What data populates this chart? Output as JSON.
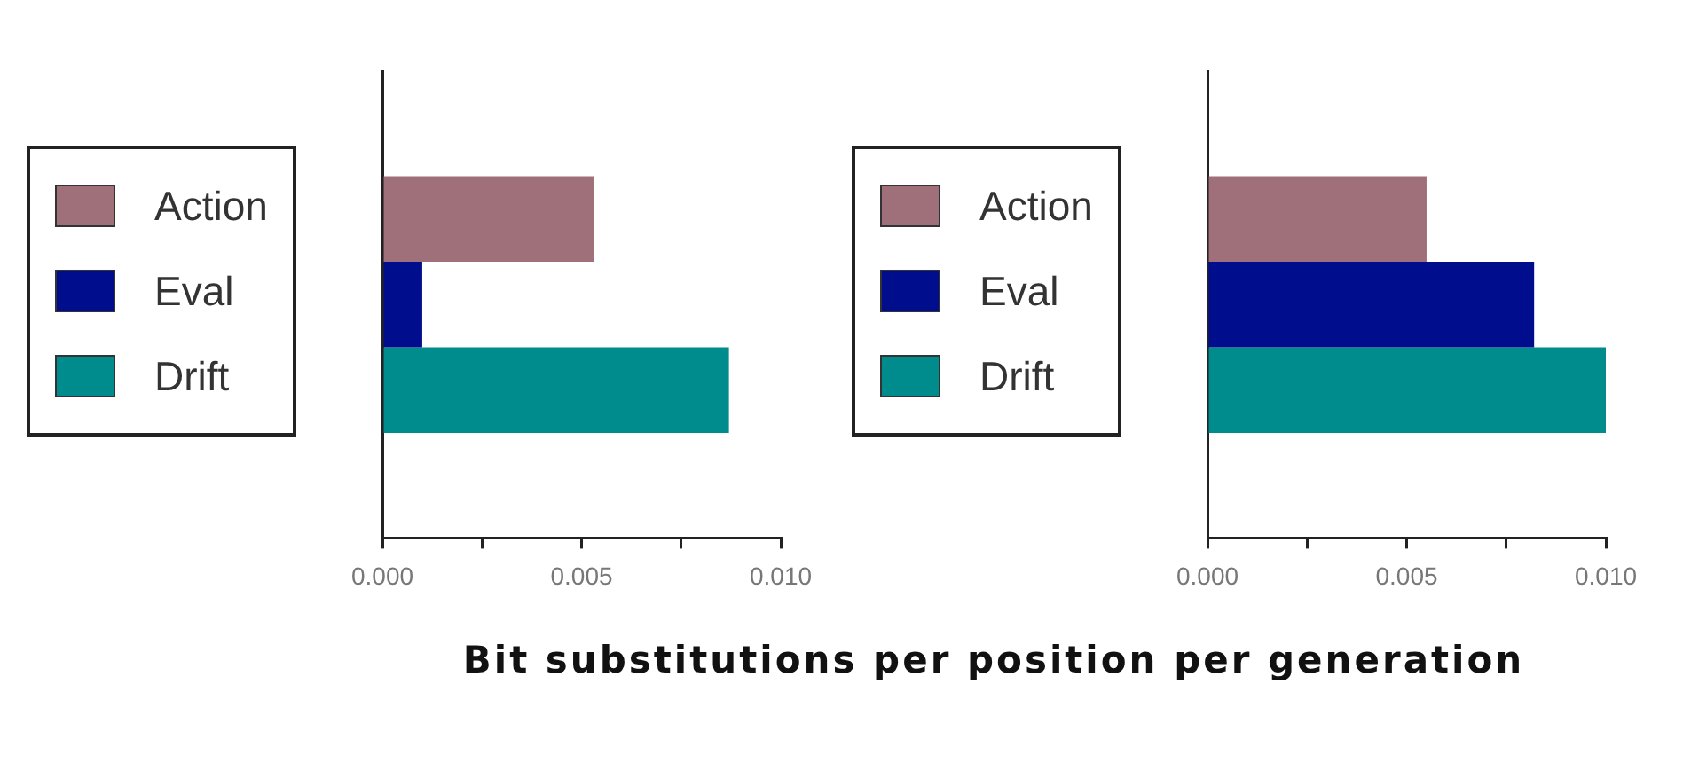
{
  "chart_data": [
    {
      "type": "bar",
      "orientation": "horizontal",
      "categories": [
        null
      ],
      "legend": "left",
      "grid": false,
      "tick_labels": "x",
      "xlim": [
        0,
        0.01
      ],
      "xticks": [
        {
          "value": 0,
          "label": "0.000"
        },
        {
          "value": 0.0025,
          "label": null
        },
        {
          "value": 0.005,
          "label": "0.005"
        },
        {
          "value": 0.0075,
          "label": null
        },
        {
          "value": 0.01,
          "label": "0.010"
        }
      ],
      "series": [
        {
          "name": "Action",
          "color": "#a0707a",
          "values": [
            0.0053
          ]
        },
        {
          "name": "Eval",
          "color": "#000d8c",
          "values": [
            0.001
          ]
        },
        {
          "name": "Drift",
          "color": "#008c8c",
          "values": [
            0.0087
          ]
        }
      ]
    },
    {
      "type": "bar",
      "orientation": "horizontal",
      "categories": [
        null
      ],
      "legend": "left",
      "grid": false,
      "tick_labels": "x",
      "xlabel": "Bit substitutions per position per generation",
      "xlim": [
        0,
        0.01
      ],
      "xticks": [
        {
          "value": 0,
          "label": "0.000"
        },
        {
          "value": 0.0025,
          "label": null
        },
        {
          "value": 0.005,
          "label": "0.005"
        },
        {
          "value": 0.0075,
          "label": null
        },
        {
          "value": 0.01,
          "label": "0.010"
        }
      ],
      "series": [
        {
          "name": "Action",
          "color": "#a0707a",
          "values": [
            0.0055
          ]
        },
        {
          "name": "Eval",
          "color": "#000d8c",
          "values": [
            0.0082
          ]
        },
        {
          "name": "Drift",
          "color": "#008c8c",
          "values": [
            0.01
          ]
        }
      ]
    }
  ]
}
